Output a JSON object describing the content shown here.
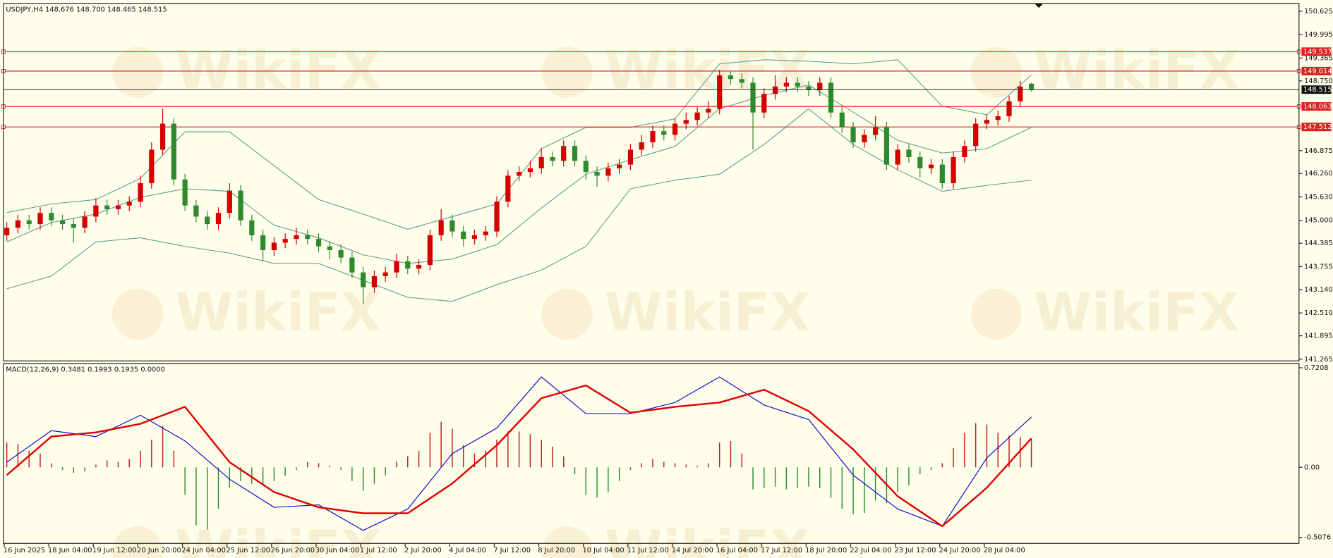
{
  "chart_data": [
    {
      "type": "candlestick",
      "title": "USDJPY,H4  148.676 148.700 148.465 148.515",
      "watermark": "WikiFX",
      "categories": [
        "16 Jun 2025",
        null,
        null,
        null,
        "18 Jun 04:00",
        null,
        null,
        null,
        "19 Jun 12:00",
        null,
        null,
        null,
        "20 Jun 20:00",
        null,
        null,
        null,
        "24 Jun 04:00",
        null,
        null,
        null,
        "25 Jun 12:00",
        null,
        null,
        null,
        "26 Jun 20:00",
        null,
        null,
        null,
        "30 Jun 04:00",
        null,
        null,
        null,
        "1 Jul 12:00",
        null,
        null,
        null,
        "2 Jul 20:00",
        null,
        null,
        null,
        "4 Jul 04:00",
        null,
        null,
        null,
        "7 Jul 12:00",
        null,
        null,
        null,
        "8 Jul 20:00",
        null,
        null,
        null,
        "10 Jul 04:00",
        null,
        null,
        null,
        "11 Jul 12:00",
        null,
        null,
        null,
        "14 Jul 20:00",
        null,
        null,
        null,
        "16 Jul 04:00",
        null,
        null,
        null,
        "17 Jul 12:00",
        null,
        null,
        null,
        "18 Jul 20:00",
        null,
        null,
        null,
        "22 Jul 04:00",
        null,
        null,
        null,
        "23 Jul 12:00",
        null,
        null,
        null,
        "24 Jul 20:00",
        null,
        null,
        null,
        "28 Jul 04:00",
        null,
        null,
        null,
        null
      ],
      "open": [
        144.6,
        144.8,
        145.0,
        144.9,
        145.2,
        145.0,
        144.9,
        144.8,
        145.1,
        145.4,
        145.3,
        145.4,
        145.5,
        146.0,
        146.9,
        147.6,
        146.1,
        145.4,
        145.1,
        144.9,
        145.2,
        145.8,
        145.0,
        144.6,
        144.2,
        144.4,
        144.5,
        144.6,
        144.5,
        144.3,
        144.2,
        144.0,
        143.6,
        143.2,
        143.5,
        143.6,
        143.9,
        143.7,
        143.8,
        144.6,
        145.0,
        144.7,
        144.5,
        144.6,
        144.7,
        145.5,
        146.2,
        146.3,
        146.4,
        146.7,
        146.6,
        147.0,
        146.6,
        146.3,
        146.2,
        146.4,
        146.5,
        146.9,
        147.1,
        147.4,
        147.3,
        147.6,
        147.7,
        147.9,
        148.0,
        148.9,
        148.8,
        148.7,
        147.9,
        148.4,
        148.6,
        148.7,
        148.6,
        148.5,
        148.7,
        147.9,
        147.5,
        147.1,
        147.3,
        147.5,
        146.5,
        146.9,
        146.7,
        146.4,
        146.5,
        146.0,
        146.7,
        147.0,
        147.6,
        147.7,
        147.8,
        148.2,
        148.676
      ],
      "high": [
        144.95,
        145.15,
        145.15,
        145.35,
        145.35,
        145.15,
        145.05,
        145.25,
        145.6,
        145.55,
        145.55,
        145.65,
        146.2,
        147.1,
        148.0,
        147.75,
        146.25,
        145.55,
        145.25,
        145.35,
        146.0,
        145.95,
        145.15,
        144.75,
        144.55,
        144.65,
        144.8,
        144.75,
        144.65,
        144.45,
        144.35,
        144.15,
        143.75,
        143.65,
        143.75,
        144.1,
        144.05,
        143.95,
        144.75,
        145.3,
        145.15,
        144.85,
        144.75,
        144.85,
        145.65,
        146.35,
        146.45,
        146.6,
        146.95,
        146.85,
        147.15,
        147.15,
        146.75,
        146.45,
        146.55,
        146.65,
        147.05,
        147.3,
        147.55,
        147.55,
        147.75,
        147.9,
        148.05,
        148.2,
        149.05,
        149.0,
        148.95,
        148.85,
        148.55,
        148.9,
        148.85,
        148.85,
        148.75,
        148.85,
        148.85,
        148.05,
        147.65,
        147.45,
        147.8,
        147.65,
        147.05,
        147.05,
        146.85,
        146.65,
        146.65,
        146.85,
        147.15,
        147.75,
        147.85,
        147.95,
        148.35,
        148.75,
        148.7
      ],
      "low": [
        144.45,
        144.65,
        144.75,
        144.75,
        144.85,
        144.75,
        144.4,
        144.65,
        144.95,
        145.15,
        145.15,
        145.25,
        145.35,
        145.85,
        146.75,
        145.95,
        145.25,
        144.95,
        144.75,
        144.75,
        145.05,
        144.85,
        144.45,
        143.9,
        144.05,
        144.25,
        144.35,
        144.35,
        144.15,
        143.95,
        143.85,
        143.45,
        142.75,
        143.05,
        143.35,
        143.45,
        143.55,
        143.55,
        143.65,
        144.45,
        144.55,
        144.3,
        144.35,
        144.45,
        144.55,
        145.35,
        146.05,
        146.15,
        146.25,
        146.45,
        146.45,
        146.45,
        146.1,
        145.9,
        146.05,
        146.25,
        146.35,
        146.75,
        146.95,
        147.15,
        147.15,
        147.45,
        147.55,
        147.75,
        147.85,
        148.65,
        148.55,
        146.9,
        147.75,
        148.25,
        148.45,
        148.45,
        148.35,
        148.35,
        147.75,
        147.35,
        146.95,
        146.95,
        147.15,
        146.35,
        146.35,
        146.55,
        146.15,
        146.25,
        145.85,
        145.85,
        146.55,
        146.85,
        147.45,
        147.55,
        147.65,
        148.05,
        148.465
      ],
      "close": [
        144.8,
        145.0,
        144.9,
        145.2,
        145.0,
        144.9,
        144.8,
        145.1,
        145.4,
        145.3,
        145.4,
        145.5,
        146.0,
        146.9,
        147.6,
        146.1,
        145.4,
        145.1,
        144.9,
        145.2,
        145.8,
        145.0,
        144.6,
        144.2,
        144.4,
        144.5,
        144.6,
        144.5,
        144.3,
        144.2,
        144.0,
        143.6,
        143.2,
        143.5,
        143.6,
        143.9,
        143.7,
        143.8,
        144.6,
        145.0,
        144.7,
        144.5,
        144.6,
        144.7,
        145.5,
        146.2,
        146.3,
        146.4,
        146.7,
        146.6,
        147.0,
        146.6,
        146.3,
        146.2,
        146.4,
        146.5,
        146.9,
        147.1,
        147.4,
        147.3,
        147.6,
        147.7,
        147.9,
        148.0,
        148.9,
        148.8,
        148.7,
        147.9,
        148.4,
        148.6,
        148.7,
        148.6,
        148.5,
        148.7,
        147.9,
        147.5,
        147.1,
        147.3,
        147.5,
        146.5,
        146.9,
        146.7,
        146.4,
        146.5,
        146.0,
        146.7,
        147.0,
        147.6,
        147.7,
        147.8,
        148.2,
        148.6,
        148.515
      ],
      "up_color": "#d40000",
      "down_color": "#2f8a2f",
      "x": [
        0,
        4,
        8,
        12,
        16,
        20,
        24,
        28,
        32,
        36,
        40,
        44,
        48,
        52,
        56,
        60,
        64,
        68,
        72,
        76,
        80,
        84,
        88,
        92
      ],
      "series": [
        {
          "color": "#5e9e8c",
          "values": [
            145.21,
            145.44,
            145.56,
            146.13,
            147.38,
            147.38,
            146.47,
            145.56,
            145.17,
            144.76,
            145.1,
            145.44,
            146.93,
            147.5,
            147.5,
            147.73,
            149.21,
            149.32,
            149.28,
            149.21,
            149.32,
            148.07,
            147.84,
            148.91
          ]
        },
        {
          "color": "#5e9e8c",
          "values": [
            144.42,
            144.94,
            145.17,
            145.62,
            145.85,
            145.78,
            144.87,
            144.53,
            144.07,
            143.84,
            143.96,
            144.35,
            145.33,
            146.24,
            146.63,
            146.99,
            148.0,
            148.36,
            148.64,
            147.91,
            147.15,
            146.81,
            146.93,
            147.5
          ]
        },
        {
          "color": "#5e9e8c",
          "values": [
            143.16,
            143.5,
            144.42,
            144.53,
            144.3,
            144.12,
            143.84,
            143.84,
            143.39,
            142.93,
            142.82,
            143.27,
            143.66,
            144.3,
            145.85,
            146.08,
            146.24,
            147.04,
            148.0,
            147.04,
            146.36,
            145.78,
            145.94,
            146.08
          ]
        }
      ],
      "levels": [
        149.537,
        149.014,
        148.063,
        147.512
      ],
      "level_color": "#e02020",
      "ylim": [
        141.22,
        150.83
      ],
      "yticks": [
        150.625,
        149.995,
        149.365,
        {
          "value": 148.75,
          "label": "148.750"
        },
        146.875,
        {
          "value": 146.26,
          "label": "146.260"
        },
        {
          "value": 145.63,
          "label": "145.630"
        },
        {
          "value": 145,
          "label": "145.000"
        },
        144.385,
        143.755,
        {
          "value": 143.14,
          "label": "143.140"
        },
        {
          "value": 142.51,
          "label": "142.510"
        },
        141.895,
        141.265
      ]
    },
    {
      "type": "macd",
      "title": "MACD(12,26,9) 0.3481 0.1993 0.1935 0.0000",
      "histogram": [
        0.18,
        0.17,
        0.12,
        0.1,
        0.03,
        -0.02,
        -0.04,
        -0.03,
        0.02,
        0.05,
        0.04,
        0.06,
        0.12,
        0.2,
        0.3,
        0.12,
        -0.2,
        -0.42,
        -0.45,
        -0.3,
        -0.15,
        -0.1,
        -0.12,
        -0.13,
        -0.1,
        -0.06,
        -0.02,
        0.04,
        0.03,
        0.01,
        -0.02,
        -0.1,
        -0.17,
        -0.12,
        -0.06,
        0.04,
        0.08,
        0.12,
        0.25,
        0.33,
        0.28,
        0.16,
        0.1,
        0.12,
        0.2,
        0.26,
        0.26,
        0.24,
        0.2,
        0.15,
        0.08,
        -0.05,
        -0.2,
        -0.22,
        -0.18,
        -0.1,
        -0.02,
        0.03,
        0.06,
        0.04,
        0.03,
        0.02,
        0.01,
        0.03,
        0.18,
        0.19,
        0.1,
        -0.16,
        -0.15,
        -0.14,
        -0.16,
        -0.15,
        -0.14,
        -0.15,
        -0.22,
        -0.3,
        -0.34,
        -0.33,
        -0.24,
        -0.26,
        -0.18,
        -0.13,
        -0.05,
        -0.02,
        0.03,
        0.14,
        0.25,
        0.32,
        0.31,
        0.25,
        0.23,
        0.22,
        0.21
      ],
      "up_color": "#c41a1a",
      "down_color": "#2f8a2f",
      "x": [
        0,
        4,
        8,
        12,
        16,
        20,
        24,
        28,
        32,
        36,
        40,
        44,
        48,
        52,
        56,
        60,
        64,
        68,
        72,
        76,
        80,
        84,
        88,
        92
      ],
      "series": [
        {
          "color": "#1010c8",
          "width": 1,
          "values": [
            0.037,
            0.265,
            0.222,
            0.377,
            0.191,
            -0.086,
            -0.29,
            -0.272,
            -0.457,
            -0.302,
            0.099,
            0.284,
            0.654,
            0.389,
            0.389,
            0.469,
            0.654,
            0.451,
            0.346,
            -0.056,
            -0.302,
            -0.426,
            0.068,
            0.364
          ]
        },
        {
          "color": "#e00000",
          "width": 2,
          "values": [
            -0.056,
            0.222,
            0.253,
            0.315,
            0.438,
            0.037,
            -0.179,
            -0.29,
            -0.333,
            -0.333,
            -0.117,
            0.16,
            0.5,
            0.593,
            0.395,
            0.438,
            0.469,
            0.562,
            0.407,
            0.13,
            -0.21,
            -0.426,
            -0.148,
            0.21
          ]
        }
      ],
      "ylim": [
        -0.551,
        0.752
      ],
      "yticks": [
        0.7208,
        {
          "value": 0,
          "label": "0.00"
        },
        -0.5076
      ]
    }
  ]
}
